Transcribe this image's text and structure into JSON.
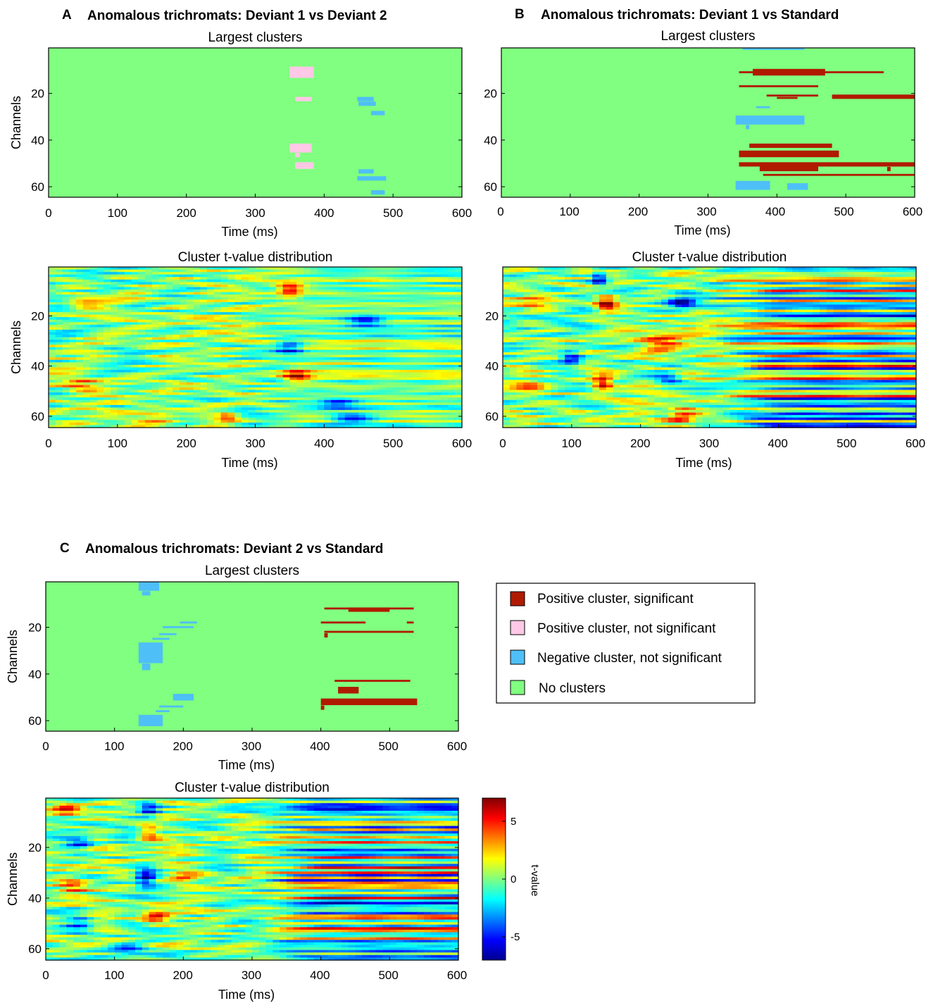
{
  "colors": {
    "background_green": "#80ff80",
    "positive_significant": "#b01a00",
    "positive_not_significant": "#ffc8e6",
    "negative_not_significant": "#4fbff7",
    "no_clusters": "#80ff80"
  },
  "panels": {
    "A": {
      "letter": "A",
      "title": "Anomalous trichromats: Deviant 1 vs Deviant 2"
    },
    "B": {
      "letter": "B",
      "title": "Anomalous trichromats: Deviant 1 vs Standard"
    },
    "C": {
      "letter": "C",
      "title": "Anomalous trichromats: Deviant 2 vs Standard"
    }
  },
  "legend": {
    "items": [
      {
        "label": "Positive cluster, significant",
        "color": "#b01a00"
      },
      {
        "label": "Positive cluster, not significant",
        "color": "#ffc8e6"
      },
      {
        "label": "Negative  cluster, not significant",
        "color": "#4fbff7"
      },
      {
        "label": "No clusters",
        "color": "#80ff80"
      }
    ]
  },
  "colorbar": {
    "label": "t-value",
    "range": [
      -7,
      7
    ],
    "ticks": [
      {
        "value": 5,
        "label": "5"
      },
      {
        "value": 0,
        "label": "0"
      },
      {
        "value": -5,
        "label": "-5"
      }
    ]
  },
  "chart_data": [
    {
      "id": "A-clusters",
      "panel": "A",
      "type": "heatmap",
      "title": "Largest clusters",
      "xlabel": "Time (ms)",
      "ylabel": "Channels",
      "xlim": [
        0,
        600
      ],
      "ylim": [
        1,
        64
      ],
      "xticks": [
        0,
        100,
        200,
        300,
        400,
        500,
        600
      ],
      "yticks": [
        20,
        40,
        60
      ],
      "clusters": [
        {
          "kind": "positive_not_significant",
          "t0": 350,
          "t1": 385,
          "ch0": 9,
          "ch1": 13
        },
        {
          "kind": "positive_not_significant",
          "t0": 358,
          "t1": 382,
          "ch0": 22,
          "ch1": 23
        },
        {
          "kind": "positive_not_significant",
          "t0": 350,
          "t1": 382,
          "ch0": 42,
          "ch1": 45
        },
        {
          "kind": "positive_not_significant",
          "t0": 358,
          "t1": 365,
          "ch0": 46,
          "ch1": 47
        },
        {
          "kind": "positive_not_significant",
          "t0": 358,
          "t1": 385,
          "ch0": 50,
          "ch1": 52
        },
        {
          "kind": "negative_not_significant",
          "t0": 448,
          "t1": 472,
          "ch0": 22,
          "ch1": 23
        },
        {
          "kind": "negative_not_significant",
          "t0": 450,
          "t1": 475,
          "ch0": 24,
          "ch1": 25
        },
        {
          "kind": "negative_not_significant",
          "t0": 468,
          "t1": 488,
          "ch0": 28,
          "ch1": 29
        },
        {
          "kind": "negative_not_significant",
          "t0": 450,
          "t1": 472,
          "ch0": 53,
          "ch1": 54
        },
        {
          "kind": "negative_not_significant",
          "t0": 448,
          "t1": 490,
          "ch0": 56,
          "ch1": 57
        },
        {
          "kind": "negative_not_significant",
          "t0": 468,
          "t1": 488,
          "ch0": 62,
          "ch1": 63
        }
      ]
    },
    {
      "id": "A-tvalues",
      "panel": "A",
      "type": "heatmap",
      "title": "Cluster t-value distribution",
      "xlabel": "Time (ms)",
      "ylabel": "Channels",
      "xlim": [
        0,
        600
      ],
      "ylim": [
        1,
        64
      ],
      "xticks": [
        0,
        100,
        200,
        300,
        400,
        500,
        600
      ],
      "yticks": [
        20,
        40,
        60
      ],
      "value_range": [
        -7,
        7
      ],
      "seed": 11,
      "stripe_strength": 0.35,
      "blobs": [
        {
          "t": 50,
          "ch": 15,
          "amp": 3,
          "w": 25,
          "h": 3
        },
        {
          "t": 45,
          "ch": 47,
          "amp": 3,
          "w": 25,
          "h": 3
        },
        {
          "t": 350,
          "ch": 10,
          "amp": 6,
          "w": 18,
          "h": 3
        },
        {
          "t": 360,
          "ch": 44,
          "amp": 5,
          "w": 20,
          "h": 3
        },
        {
          "t": 160,
          "ch": 60,
          "amp": 4,
          "w": 30,
          "h": 2
        },
        {
          "t": 260,
          "ch": 60,
          "amp": 4,
          "w": 15,
          "h": 2
        },
        {
          "t": 350,
          "ch": 33,
          "amp": -5,
          "w": 20,
          "h": 3
        },
        {
          "t": 460,
          "ch": 22,
          "amp": -5,
          "w": 25,
          "h": 2
        },
        {
          "t": 440,
          "ch": 61,
          "amp": -5,
          "w": 30,
          "h": 2
        },
        {
          "t": 420,
          "ch": 55,
          "amp": -4,
          "w": 25,
          "h": 2
        }
      ]
    },
    {
      "id": "B-clusters",
      "panel": "B",
      "type": "heatmap",
      "title": "Largest clusters",
      "xlabel": "Time (ms)",
      "ylabel": "Channels",
      "xlim": [
        0,
        600
      ],
      "ylim": [
        1,
        64
      ],
      "xticks": [
        0,
        100,
        200,
        300,
        400,
        500,
        600
      ],
      "yticks": [
        20,
        40,
        60
      ],
      "clusters": [
        {
          "kind": "negative_not_significant",
          "t0": 350,
          "t1": 440,
          "ch0": 1,
          "ch1": 1
        },
        {
          "kind": "positive_significant",
          "t0": 345,
          "t1": 555,
          "ch0": 11,
          "ch1": 11
        },
        {
          "kind": "positive_significant",
          "t0": 365,
          "t1": 470,
          "ch0": 10,
          "ch1": 12
        },
        {
          "kind": "positive_significant",
          "t0": 345,
          "t1": 460,
          "ch0": 17,
          "ch1": 17
        },
        {
          "kind": "positive_significant",
          "t0": 385,
          "t1": 460,
          "ch0": 21,
          "ch1": 21
        },
        {
          "kind": "positive_significant",
          "t0": 400,
          "t1": 430,
          "ch0": 22,
          "ch1": 22
        },
        {
          "kind": "positive_significant",
          "t0": 480,
          "t1": 600,
          "ch0": 21,
          "ch1": 22
        },
        {
          "kind": "negative_not_significant",
          "t0": 370,
          "t1": 390,
          "ch0": 26,
          "ch1": 26
        },
        {
          "kind": "negative_not_significant",
          "t0": 340,
          "t1": 440,
          "ch0": 30,
          "ch1": 33
        },
        {
          "kind": "negative_not_significant",
          "t0": 355,
          "t1": 360,
          "ch0": 34,
          "ch1": 35
        },
        {
          "kind": "positive_significant",
          "t0": 360,
          "t1": 480,
          "ch0": 42,
          "ch1": 43
        },
        {
          "kind": "positive_significant",
          "t0": 345,
          "t1": 490,
          "ch0": 45,
          "ch1": 47
        },
        {
          "kind": "positive_significant",
          "t0": 345,
          "t1": 600,
          "ch0": 50,
          "ch1": 51
        },
        {
          "kind": "positive_significant",
          "t0": 375,
          "t1": 460,
          "ch0": 51,
          "ch1": 53
        },
        {
          "kind": "positive_significant",
          "t0": 560,
          "t1": 565,
          "ch0": 52,
          "ch1": 53
        },
        {
          "kind": "positive_significant",
          "t0": 380,
          "t1": 600,
          "ch0": 55,
          "ch1": 55
        },
        {
          "kind": "negative_not_significant",
          "t0": 340,
          "t1": 390,
          "ch0": 58,
          "ch1": 61
        },
        {
          "kind": "negative_not_significant",
          "t0": 415,
          "t1": 445,
          "ch0": 59,
          "ch1": 61
        }
      ]
    },
    {
      "id": "B-tvalues",
      "panel": "B",
      "type": "heatmap",
      "title": "Cluster t-value distribution",
      "xlabel": "Time (ms)",
      "ylabel": "Channels",
      "xlim": [
        0,
        600
      ],
      "ylim": [
        1,
        64
      ],
      "xticks": [
        0,
        100,
        200,
        300,
        400,
        500,
        600
      ],
      "yticks": [
        20,
        40,
        60
      ],
      "value_range": [
        -7,
        7
      ],
      "seed": 23,
      "stripe_strength": 1.0,
      "blobs": [
        {
          "t": 150,
          "ch": 15,
          "amp": 7,
          "w": 15,
          "h": 3
        },
        {
          "t": 145,
          "ch": 47,
          "amp": 7,
          "w": 15,
          "h": 3
        },
        {
          "t": 260,
          "ch": 60,
          "amp": 5,
          "w": 20,
          "h": 3
        },
        {
          "t": 230,
          "ch": 30,
          "amp": 4,
          "w": 30,
          "h": 4
        },
        {
          "t": 40,
          "ch": 48,
          "amp": 3,
          "w": 25,
          "h": 3
        },
        {
          "t": 45,
          "ch": 15,
          "amp": 3,
          "w": 25,
          "h": 3
        },
        {
          "t": 140,
          "ch": 5,
          "amp": -6,
          "w": 12,
          "h": 3
        },
        {
          "t": 100,
          "ch": 37,
          "amp": -5,
          "w": 15,
          "h": 3
        },
        {
          "t": 260,
          "ch": 15,
          "amp": -5,
          "w": 20,
          "h": 3
        },
        {
          "t": 240,
          "ch": 45,
          "amp": -4,
          "w": 20,
          "h": 3
        }
      ]
    },
    {
      "id": "C-clusters",
      "panel": "C",
      "type": "heatmap",
      "title": "Largest clusters",
      "xlabel": "Time (ms)",
      "ylabel": "Channels",
      "xlim": [
        0,
        600
      ],
      "ylim": [
        1,
        64
      ],
      "xticks": [
        0,
        100,
        200,
        300,
        400,
        500,
        600
      ],
      "yticks": [
        20,
        40,
        60
      ],
      "clusters": [
        {
          "kind": "negative_not_significant",
          "t0": 135,
          "t1": 165,
          "ch0": 1,
          "ch1": 4
        },
        {
          "kind": "negative_not_significant",
          "t0": 140,
          "t1": 152,
          "ch0": 5,
          "ch1": 6
        },
        {
          "kind": "negative_not_significant",
          "t0": 195,
          "t1": 220,
          "ch0": 18,
          "ch1": 18
        },
        {
          "kind": "negative_not_significant",
          "t0": 170,
          "t1": 215,
          "ch0": 20,
          "ch1": 20
        },
        {
          "kind": "negative_not_significant",
          "t0": 165,
          "t1": 190,
          "ch0": 23,
          "ch1": 23
        },
        {
          "kind": "negative_not_significant",
          "t0": 155,
          "t1": 180,
          "ch0": 25,
          "ch1": 25
        },
        {
          "kind": "negative_not_significant",
          "t0": 135,
          "t1": 170,
          "ch0": 27,
          "ch1": 35
        },
        {
          "kind": "negative_not_significant",
          "t0": 140,
          "t1": 152,
          "ch0": 36,
          "ch1": 38
        },
        {
          "kind": "negative_not_significant",
          "t0": 185,
          "t1": 215,
          "ch0": 49,
          "ch1": 51
        },
        {
          "kind": "negative_not_significant",
          "t0": 165,
          "t1": 200,
          "ch0": 54,
          "ch1": 54
        },
        {
          "kind": "negative_not_significant",
          "t0": 160,
          "t1": 180,
          "ch0": 56,
          "ch1": 56
        },
        {
          "kind": "negative_not_significant",
          "t0": 135,
          "t1": 170,
          "ch0": 58,
          "ch1": 62
        },
        {
          "kind": "positive_significant",
          "t0": 405,
          "t1": 535,
          "ch0": 12,
          "ch1": 12
        },
        {
          "kind": "positive_significant",
          "t0": 440,
          "t1": 500,
          "ch0": 12,
          "ch1": 13
        },
        {
          "kind": "positive_significant",
          "t0": 400,
          "t1": 465,
          "ch0": 18,
          "ch1": 18
        },
        {
          "kind": "positive_significant",
          "t0": 525,
          "t1": 535,
          "ch0": 18,
          "ch1": 18
        },
        {
          "kind": "positive_significant",
          "t0": 405,
          "t1": 535,
          "ch0": 22,
          "ch1": 22
        },
        {
          "kind": "positive_significant",
          "t0": 405,
          "t1": 410,
          "ch0": 23,
          "ch1": 24
        },
        {
          "kind": "positive_significant",
          "t0": 420,
          "t1": 530,
          "ch0": 43,
          "ch1": 43
        },
        {
          "kind": "positive_significant",
          "t0": 425,
          "t1": 455,
          "ch0": 46,
          "ch1": 48
        },
        {
          "kind": "positive_significant",
          "t0": 400,
          "t1": 540,
          "ch0": 51,
          "ch1": 53
        },
        {
          "kind": "positive_significant",
          "t0": 400,
          "t1": 405,
          "ch0": 54,
          "ch1": 55
        }
      ]
    },
    {
      "id": "C-tvalues",
      "panel": "C",
      "type": "heatmap",
      "title": "Cluster t-value distribution",
      "xlabel": "Time (ms)",
      "ylabel": "Channels",
      "xlim": [
        0,
        600
      ],
      "ylim": [
        1,
        64
      ],
      "xticks": [
        0,
        100,
        200,
        300,
        400,
        500,
        600
      ],
      "yticks": [
        20,
        40,
        60
      ],
      "value_range": [
        -7,
        7
      ],
      "seed": 37,
      "stripe_strength": 1.0,
      "blobs": [
        {
          "t": 150,
          "ch": 14,
          "amp": 5,
          "w": 15,
          "h": 3
        },
        {
          "t": 160,
          "ch": 47,
          "amp": 5,
          "w": 20,
          "h": 3
        },
        {
          "t": 30,
          "ch": 5,
          "amp": 4,
          "w": 20,
          "h": 3
        },
        {
          "t": 40,
          "ch": 36,
          "amp": 4,
          "w": 20,
          "h": 3
        },
        {
          "t": 200,
          "ch": 33,
          "amp": 3,
          "w": 20,
          "h": 3
        },
        {
          "t": 145,
          "ch": 32,
          "amp": -6,
          "w": 15,
          "h": 4
        },
        {
          "t": 150,
          "ch": 5,
          "amp": -5,
          "w": 15,
          "h": 3
        },
        {
          "t": 50,
          "ch": 18,
          "amp": -4,
          "w": 20,
          "h": 3
        },
        {
          "t": 50,
          "ch": 50,
          "amp": -4,
          "w": 20,
          "h": 3
        },
        {
          "t": 120,
          "ch": 60,
          "amp": -3,
          "w": 25,
          "h": 3
        }
      ]
    }
  ]
}
